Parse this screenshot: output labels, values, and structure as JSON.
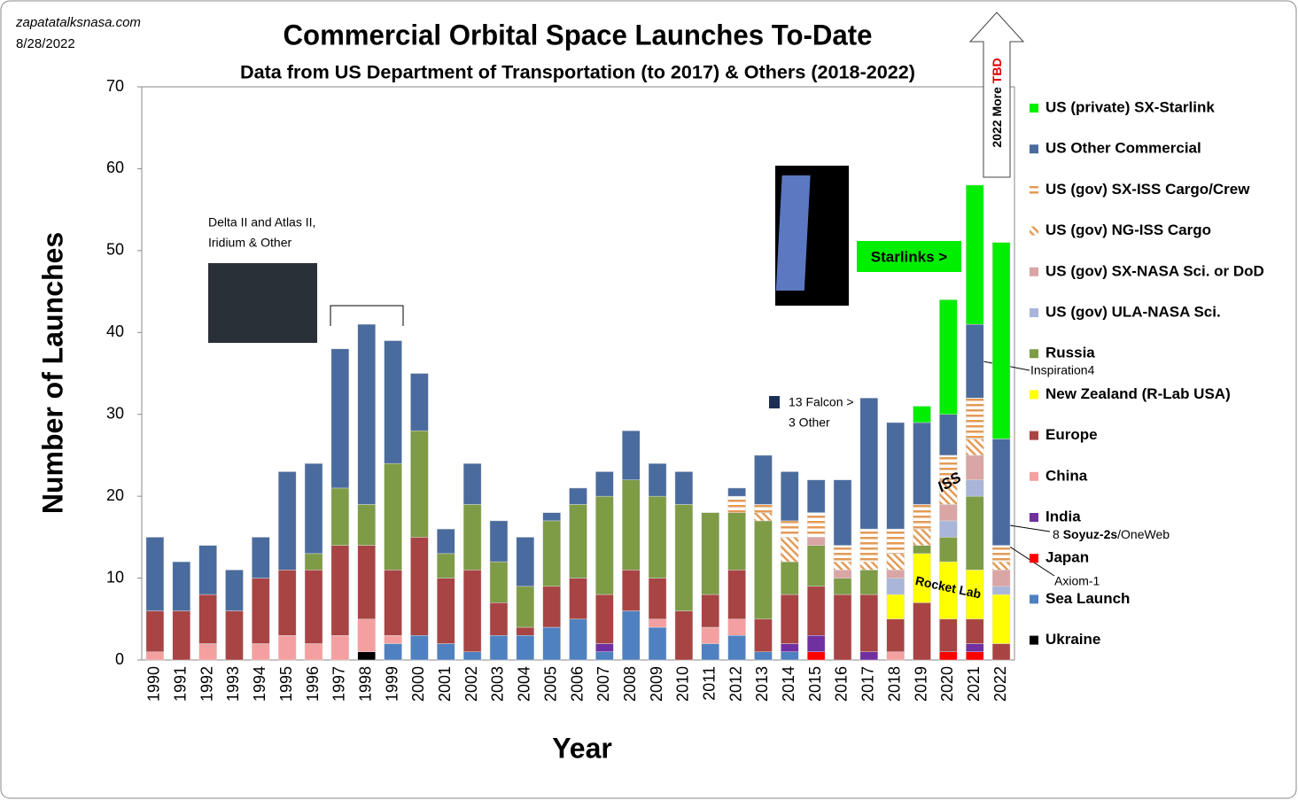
{
  "chart_data": {
    "type": "stacked_bar",
    "title": "Commercial Orbital Space Launches To-Date",
    "subtitle": "Data from US Department of Transportation (to 2017) & Others (2018-2022)",
    "source": "zapatatalksnasa.com",
    "date": "8/28/2022",
    "x_label": "Year",
    "y_label": "Number of Launches",
    "ylim": [
      0,
      70
    ],
    "yticks": [
      0,
      10,
      20,
      30,
      40,
      50,
      60,
      70
    ],
    "grid": false,
    "legend": "right",
    "categories": [
      "1990",
      "1991",
      "1992",
      "1993",
      "1994",
      "1995",
      "1996",
      "1997",
      "1998",
      "1999",
      "2000",
      "2001",
      "2002",
      "2003",
      "2004",
      "2005",
      "2006",
      "2007",
      "2008",
      "2009",
      "2010",
      "2011",
      "2012",
      "2013",
      "2014",
      "2015",
      "2016",
      "2017",
      "2018",
      "2019",
      "2020",
      "2021",
      "2022"
    ],
    "series": [
      {
        "name": "US (private) SX-Starlink",
        "color": "#00ee00",
        "pattern": "solid",
        "values": [
          0,
          0,
          0,
          0,
          0,
          0,
          0,
          0,
          0,
          0,
          0,
          0,
          0,
          0,
          0,
          0,
          0,
          0,
          0,
          0,
          0,
          0,
          0,
          0,
          0,
          0,
          0,
          0,
          0,
          2,
          14,
          17,
          24
        ]
      },
      {
        "name": "US Other Commercial",
        "color": "#4a6b9e",
        "pattern": "solid",
        "values": [
          9,
          6,
          6,
          5,
          5,
          12,
          11,
          17,
          22,
          15,
          7,
          3,
          5,
          5,
          6,
          1,
          2,
          3,
          6,
          4,
          4,
          0,
          1,
          6,
          6,
          4,
          8,
          16,
          13,
          10,
          5,
          9,
          13
        ]
      },
      {
        "name": "US (gov) SX-ISS Cargo/Crew",
        "color": "#e39a55",
        "pattern": "hstripe",
        "values": [
          0,
          0,
          0,
          0,
          0,
          0,
          0,
          0,
          0,
          0,
          0,
          0,
          0,
          0,
          0,
          0,
          0,
          0,
          0,
          0,
          0,
          0,
          2,
          1,
          2,
          3,
          2,
          4,
          3,
          3,
          3,
          5,
          2
        ]
      },
      {
        "name": "US (gov) NG-ISS Cargo",
        "color": "#e39a55",
        "pattern": "dstripe",
        "values": [
          0,
          0,
          0,
          0,
          0,
          0,
          0,
          0,
          0,
          0,
          0,
          0,
          0,
          0,
          0,
          0,
          0,
          0,
          0,
          0,
          0,
          0,
          0,
          1,
          3,
          0,
          1,
          1,
          2,
          2,
          3,
          2,
          1
        ]
      },
      {
        "name": "US (gov) SX-NASA Sci. or DoD",
        "color": "#d9a5a5",
        "pattern": "solid",
        "values": [
          0,
          0,
          0,
          0,
          0,
          0,
          0,
          0,
          0,
          0,
          0,
          0,
          0,
          0,
          0,
          0,
          0,
          0,
          0,
          0,
          0,
          0,
          0,
          0,
          0,
          1,
          1,
          0,
          1,
          0,
          2,
          3,
          2
        ]
      },
      {
        "name": "US (gov) ULA-NASA Sci.",
        "color": "#a9b5d9",
        "pattern": "solid",
        "values": [
          0,
          0,
          0,
          0,
          0,
          0,
          0,
          0,
          0,
          0,
          0,
          0,
          0,
          0,
          0,
          0,
          0,
          0,
          0,
          0,
          0,
          0,
          0,
          0,
          0,
          0,
          0,
          0,
          2,
          0,
          2,
          2,
          1
        ]
      },
      {
        "name": "Russia",
        "color": "#7e9b46",
        "pattern": "solid",
        "values": [
          0,
          0,
          0,
          0,
          0,
          0,
          2,
          7,
          5,
          13,
          13,
          3,
          8,
          5,
          5,
          8,
          9,
          12,
          11,
          10,
          13,
          10,
          7,
          12,
          4,
          5,
          2,
          3,
          0,
          1,
          3,
          9,
          0
        ]
      },
      {
        "name": "New Zealand (R-Lab USA)",
        "color": "#ffff00",
        "pattern": "solid",
        "values": [
          0,
          0,
          0,
          0,
          0,
          0,
          0,
          0,
          0,
          0,
          0,
          0,
          0,
          0,
          0,
          0,
          0,
          0,
          0,
          0,
          0,
          0,
          0,
          0,
          0,
          0,
          0,
          0,
          3,
          6,
          7,
          6,
          6
        ]
      },
      {
        "name": "Europe",
        "color": "#a84444",
        "pattern": "solid",
        "values": [
          5,
          6,
          6,
          6,
          8,
          8,
          9,
          11,
          9,
          8,
          12,
          8,
          10,
          4,
          1,
          5,
          5,
          6,
          5,
          5,
          6,
          4,
          6,
          4,
          6,
          6,
          8,
          7,
          4,
          7,
          4,
          3,
          2
        ]
      },
      {
        "name": "China",
        "color": "#f5a0a0",
        "pattern": "solid",
        "values": [
          1,
          0,
          2,
          0,
          2,
          3,
          2,
          3,
          4,
          1,
          0,
          0,
          0,
          0,
          0,
          0,
          0,
          0,
          0,
          1,
          0,
          2,
          2,
          0,
          0,
          0,
          0,
          0,
          1,
          0,
          0,
          0,
          0
        ]
      },
      {
        "name": "India",
        "color": "#7030a0",
        "pattern": "solid",
        "values": [
          0,
          0,
          0,
          0,
          0,
          0,
          0,
          0,
          0,
          0,
          0,
          0,
          0,
          0,
          0,
          0,
          0,
          1,
          0,
          0,
          0,
          0,
          0,
          0,
          1,
          2,
          0,
          1,
          0,
          0,
          0,
          1,
          0
        ]
      },
      {
        "name": "Japan",
        "color": "#ff0000",
        "pattern": "solid",
        "values": [
          0,
          0,
          0,
          0,
          0,
          0,
          0,
          0,
          0,
          0,
          0,
          0,
          0,
          0,
          0,
          0,
          0,
          0,
          0,
          0,
          0,
          0,
          0,
          0,
          0,
          1,
          0,
          0,
          0,
          0,
          1,
          1,
          0
        ]
      },
      {
        "name": "Sea Launch",
        "color": "#4f81c0",
        "pattern": "solid",
        "values": [
          0,
          0,
          0,
          0,
          0,
          0,
          0,
          0,
          0,
          2,
          3,
          2,
          1,
          3,
          3,
          4,
          5,
          1,
          6,
          4,
          0,
          2,
          3,
          1,
          1,
          0,
          0,
          0,
          0,
          0,
          0,
          0,
          0
        ]
      },
      {
        "name": "Ukraine",
        "color": "#000000",
        "pattern": "solid",
        "values": [
          0,
          0,
          0,
          0,
          0,
          0,
          0,
          0,
          1,
          0,
          0,
          0,
          0,
          0,
          0,
          0,
          0,
          0,
          0,
          0,
          0,
          0,
          0,
          0,
          0,
          0,
          0,
          0,
          0,
          0,
          0,
          0,
          0
        ]
      }
    ],
    "annotations": {
      "delta_line1": "Delta II and Atlas II,",
      "delta_line2": "Iridium & Other",
      "starlinks": "Starlinks >",
      "falcon": "13 Falcon >",
      "other": "3 Other",
      "iss": "ISS",
      "rocket_lab": "Rocket Lab",
      "inspiration": "Inspiration4",
      "soyuz_count": "8 ",
      "soyuz_bold": "Soyuz-2s",
      "soyuz_rest": "/OneWeb",
      "axiom": "Axiom-1",
      "more": "2022 More ",
      "tbd": "TBD"
    }
  }
}
